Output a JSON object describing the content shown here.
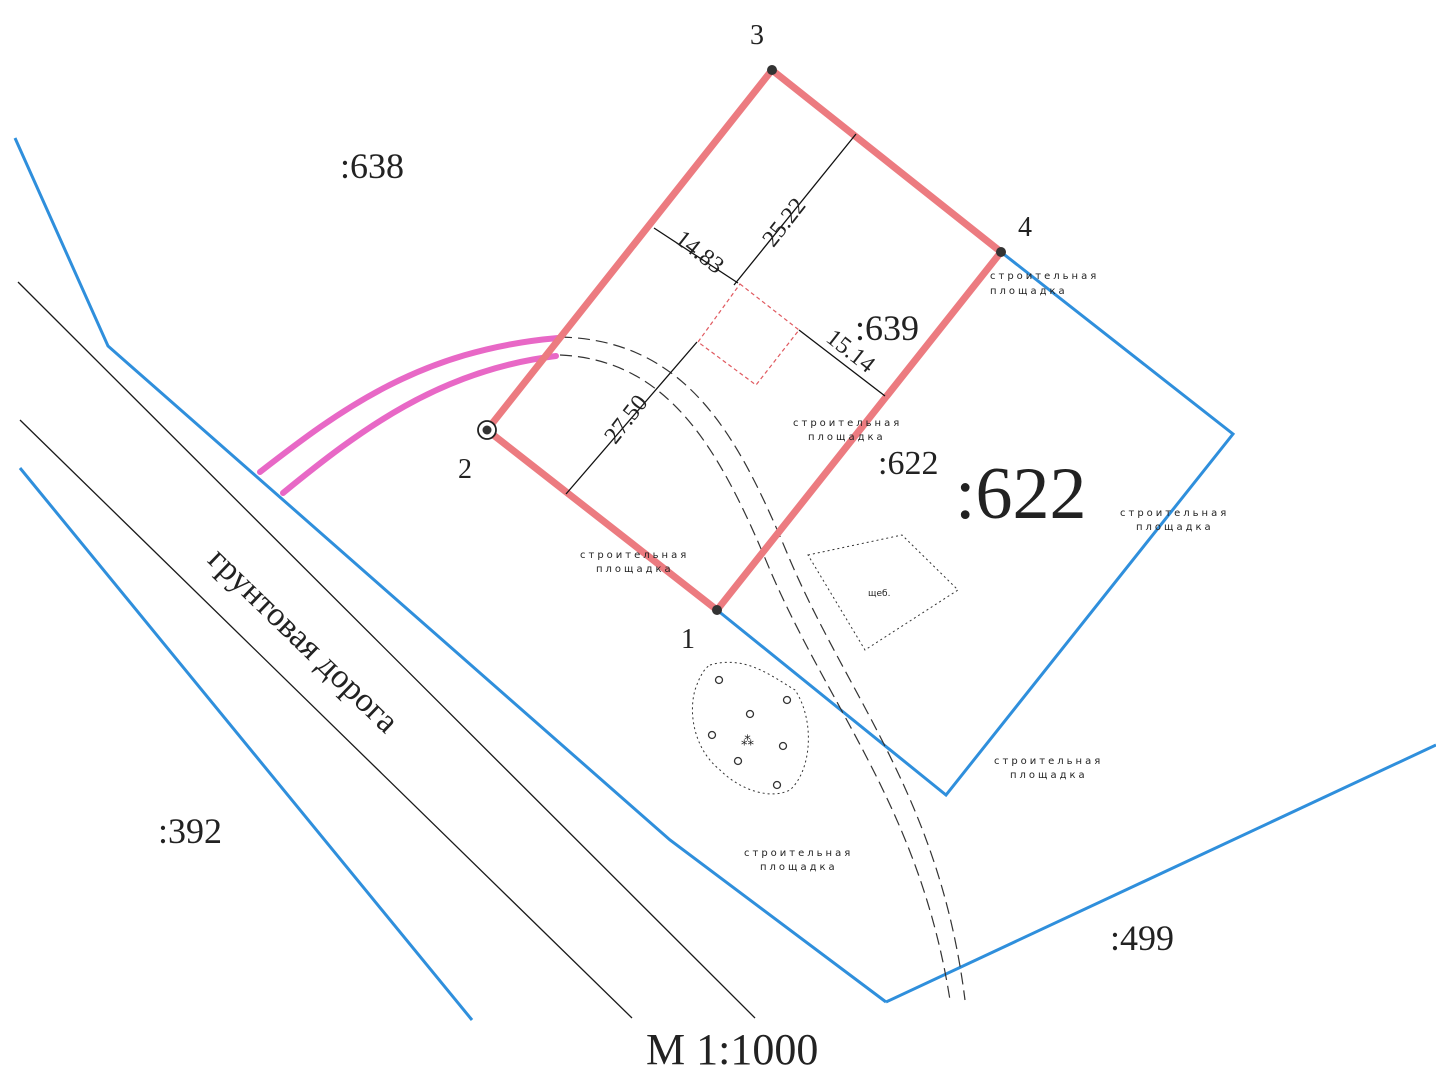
{
  "colors": {
    "parcel_boundary": "#ec7b80",
    "neighbor_boundary": "#2f8fdc",
    "driveway": "#e868c6",
    "line_black": "#1a1a1a"
  },
  "parcel_labels": {
    "p638": ":638",
    "p639": ":639",
    "p622_small": ":622",
    "p622_large": ":622",
    "p392": ":392",
    "p499": ":499"
  },
  "points": {
    "pt1": "1",
    "pt2": "2",
    "pt3": "3",
    "pt4": "4"
  },
  "dimensions": {
    "d25_22": "25.22",
    "d14_83": "14.83",
    "d15_14": "15.14",
    "d27_50": "27.50"
  },
  "road_label": "грунтовая дорога",
  "site_labels": {
    "s1_line1": "строительная",
    "s1_line2": "площадка",
    "s2_line1": "строительная",
    "s2_line2": "площадка",
    "s3_line1": "строительная",
    "s3_line2": "площадка",
    "s4_line1": "строительная",
    "s4_line2": "площадка",
    "s5_line1": "строительная",
    "s5_line2": "площадка",
    "s6_line1": "строительная",
    "s6_line2": "площадка"
  },
  "gravel_label": "щеб.",
  "tree_symbol": "⁂",
  "scale_label": "М  1:1000"
}
